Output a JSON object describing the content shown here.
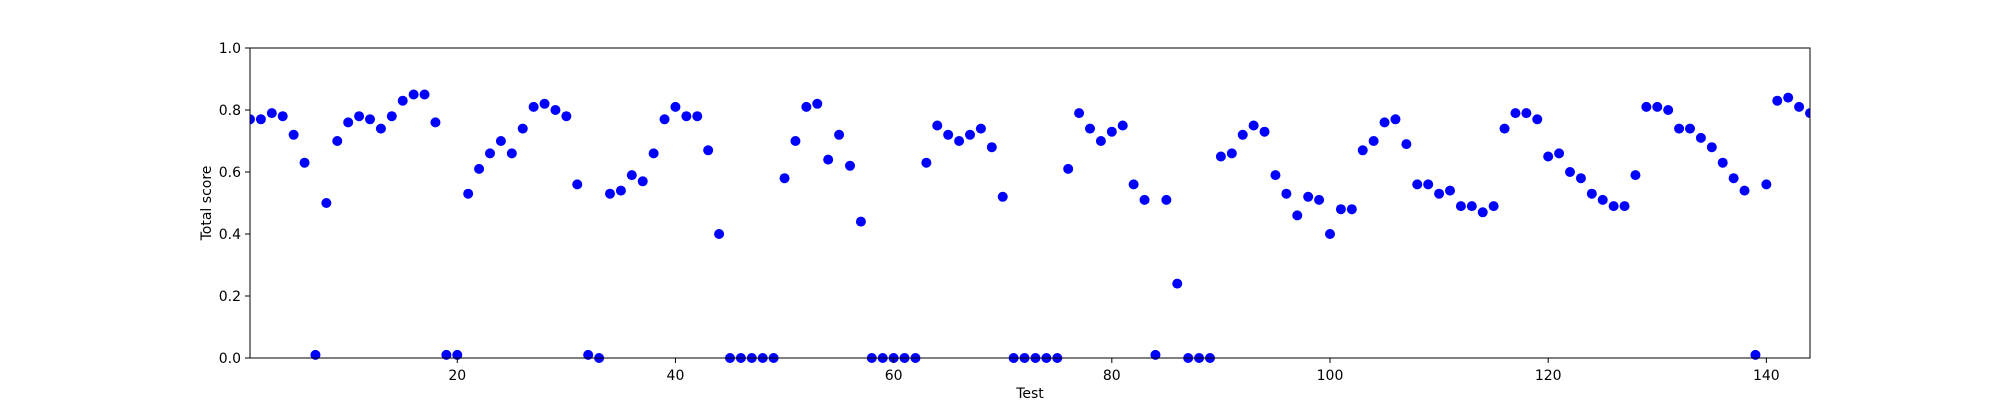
{
  "chart_data": {
    "type": "scatter",
    "xlabel": "Test",
    "ylabel": "Total score",
    "xlim": [
      1,
      144
    ],
    "ylim": [
      0.0,
      1.0
    ],
    "xticks": [
      20,
      40,
      60,
      80,
      100,
      120,
      140
    ],
    "xtick_labels": [
      "20",
      "40",
      "60",
      "80",
      "100",
      "120",
      "140"
    ],
    "yticks": [
      0.0,
      0.2,
      0.4,
      0.6,
      0.8,
      1.0
    ],
    "ytick_labels": [
      "0.0",
      "0.2",
      "0.4",
      "0.6",
      "0.8",
      "1.0"
    ],
    "grid": false,
    "marker_color": "#0000ff",
    "series": [
      {
        "x": [
          1,
          2,
          3,
          4,
          5,
          6,
          7,
          8,
          9,
          10,
          11,
          12,
          13,
          14,
          15,
          16,
          17,
          18,
          19,
          20,
          21,
          22,
          23,
          24,
          25,
          26,
          27,
          28,
          29,
          30,
          31,
          32,
          33,
          34,
          35,
          36,
          37,
          38,
          39,
          40,
          41,
          42,
          43,
          44,
          45,
          46,
          47,
          48,
          49,
          50,
          51,
          52,
          53,
          54,
          55,
          56,
          57,
          58,
          59,
          60,
          61,
          62,
          63,
          64,
          65,
          66,
          67,
          68,
          69,
          70,
          71,
          72,
          73,
          74,
          75,
          76,
          77,
          78,
          79,
          80,
          81,
          82,
          83,
          84,
          85,
          86,
          87,
          88,
          89,
          90,
          91,
          92,
          93,
          94,
          95,
          96,
          97,
          98,
          99,
          100,
          101,
          102,
          103,
          104,
          105,
          106,
          107,
          108,
          109,
          110,
          111,
          112,
          113,
          114,
          115,
          116,
          117,
          118,
          119,
          120,
          121,
          122,
          123,
          124,
          125,
          126,
          127,
          128,
          129,
          130,
          131,
          132,
          133,
          134,
          135,
          136,
          137,
          138,
          139,
          140,
          141,
          142,
          143,
          144
        ],
        "y": [
          0.77,
          0.77,
          0.79,
          0.78,
          0.72,
          0.63,
          0.01,
          0.5,
          0.7,
          0.76,
          0.78,
          0.77,
          0.74,
          0.78,
          0.83,
          0.85,
          0.85,
          0.76,
          0.01,
          0.01,
          0.53,
          0.61,
          0.66,
          0.7,
          0.66,
          0.74,
          0.81,
          0.82,
          0.8,
          0.78,
          0.56,
          0.01,
          0.0,
          0.53,
          0.54,
          0.59,
          0.57,
          0.66,
          0.77,
          0.81,
          0.78,
          0.78,
          0.67,
          0.4,
          0.0,
          0.0,
          0.0,
          0.0,
          0.0,
          0.58,
          0.7,
          0.81,
          0.82,
          0.64,
          0.72,
          0.62,
          0.44,
          0.0,
          0.0,
          0.0,
          0.0,
          0.0,
          0.63,
          0.75,
          0.72,
          0.7,
          0.72,
          0.74,
          0.68,
          0.52,
          0.0,
          0.0,
          0.0,
          0.0,
          0.0,
          0.61,
          0.79,
          0.74,
          0.7,
          0.73,
          0.75,
          0.56,
          0.51,
          0.01,
          0.51,
          0.24,
          0.0,
          0.0,
          0.0,
          0.65,
          0.66,
          0.72,
          0.75,
          0.73,
          0.59,
          0.53,
          0.46,
          0.52,
          0.51,
          0.4,
          0.48,
          0.48,
          0.67,
          0.7,
          0.76,
          0.77,
          0.69,
          0.56,
          0.56,
          0.53,
          0.54,
          0.49,
          0.49,
          0.47,
          0.49,
          0.74,
          0.79,
          0.79,
          0.77,
          0.65,
          0.66,
          0.6,
          0.58,
          0.53,
          0.51,
          0.49,
          0.49,
          0.59,
          0.81,
          0.81,
          0.8,
          0.74,
          0.74,
          0.71,
          0.68,
          0.63,
          0.58,
          0.54,
          0.01,
          0.56,
          0.83,
          0.84,
          0.81,
          0.79
        ]
      }
    ]
  }
}
